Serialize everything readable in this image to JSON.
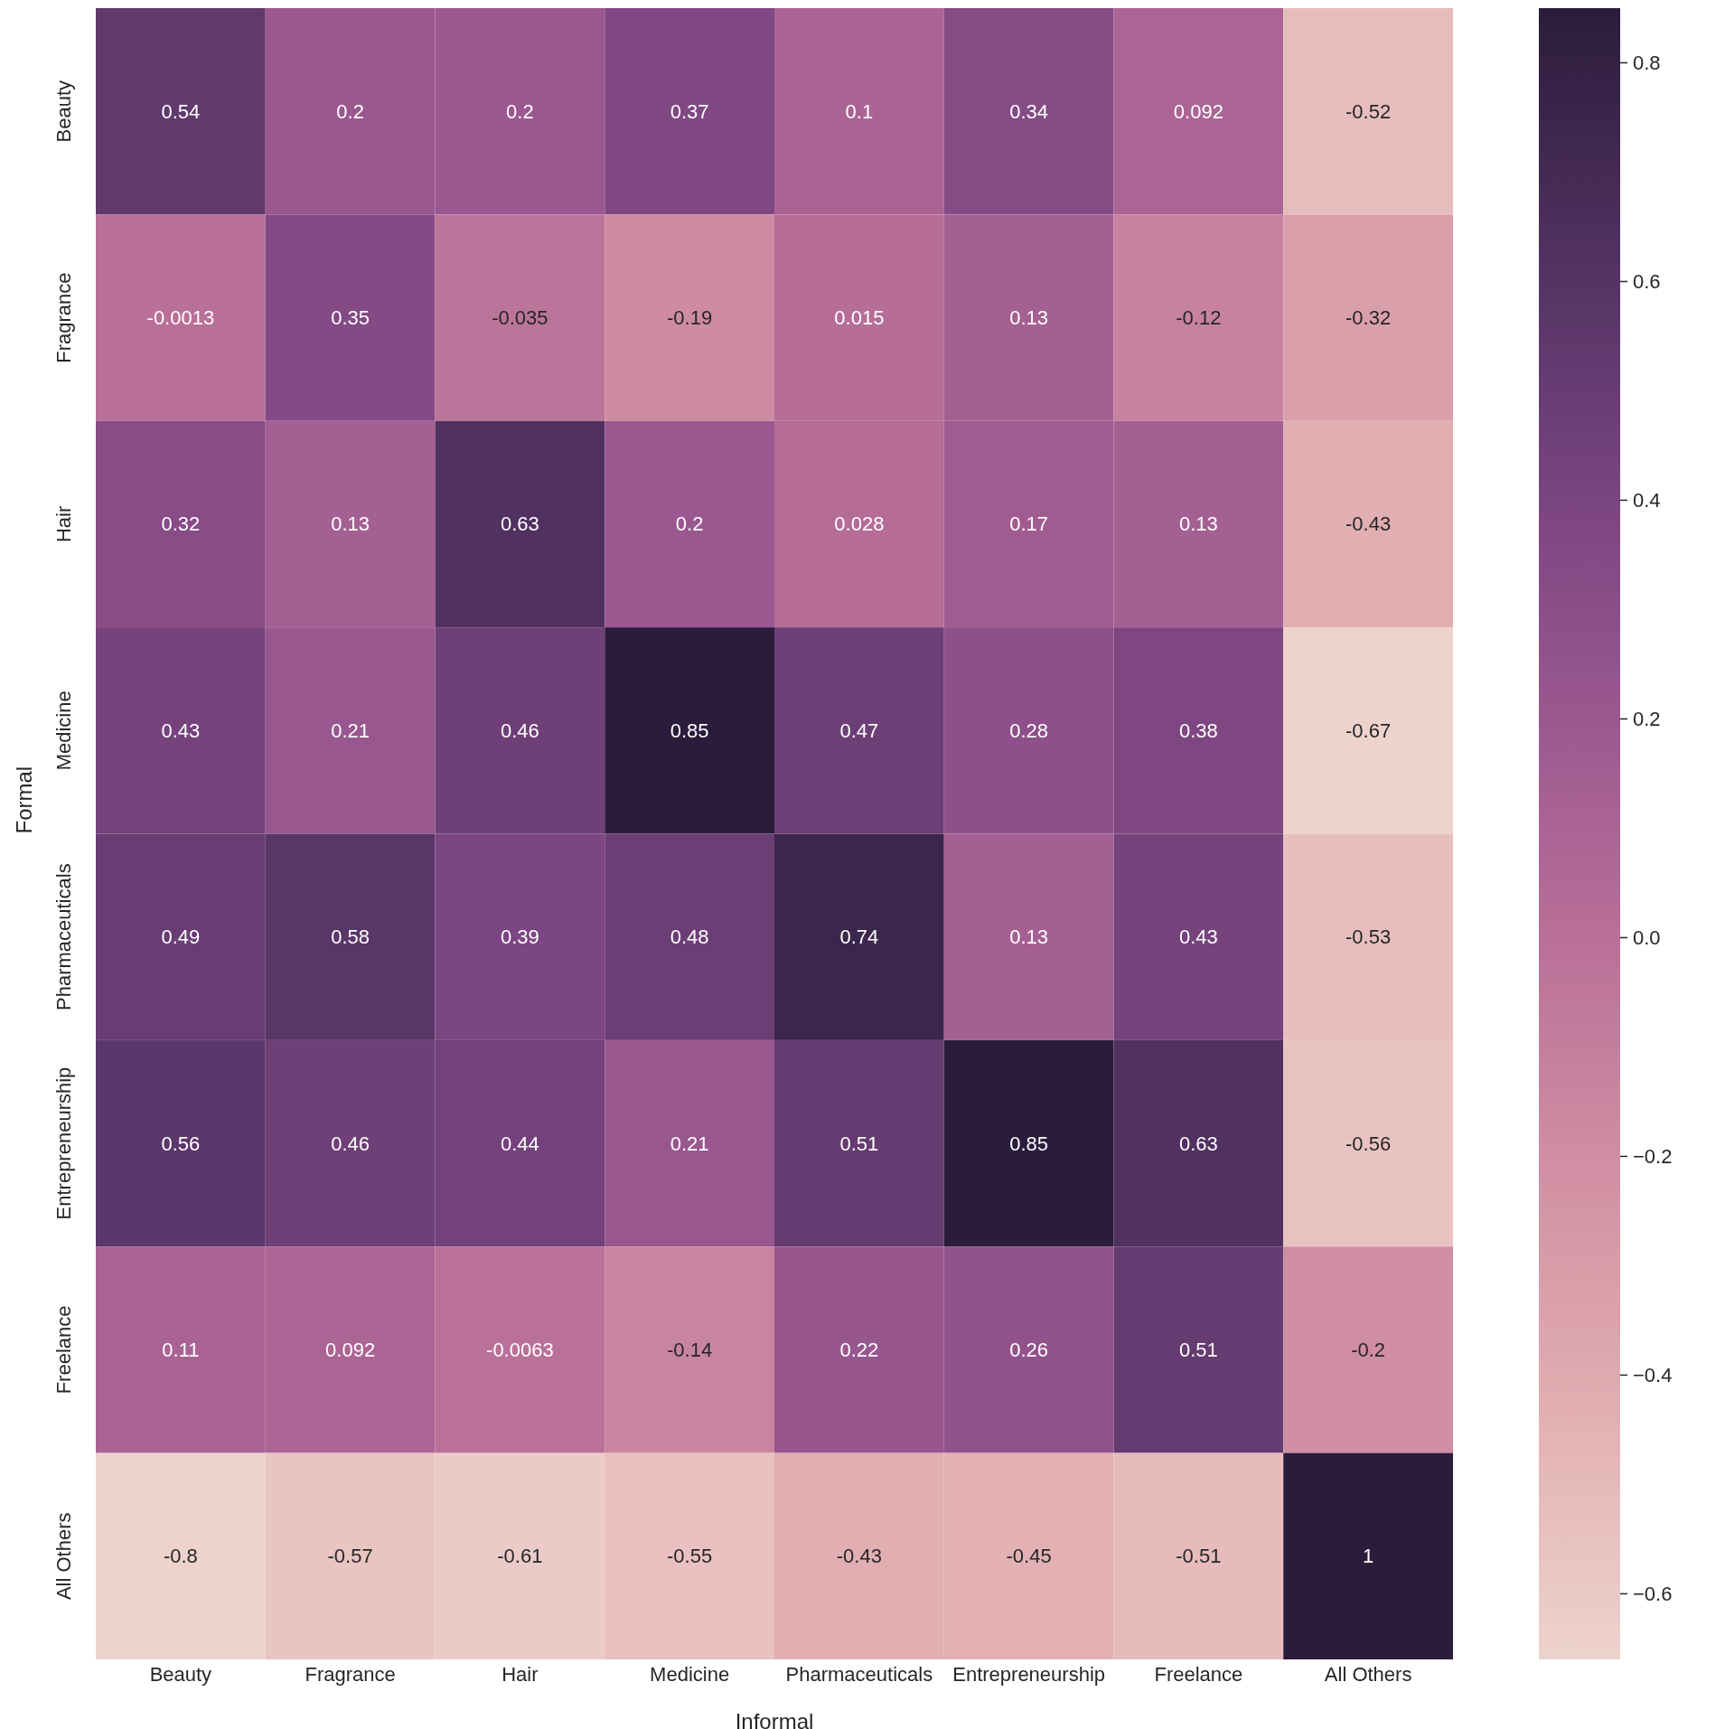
{
  "chart_data": {
    "type": "heatmap",
    "xlabel": "Informal",
    "ylabel": "Formal",
    "categories": [
      "Beauty",
      "Fragrance",
      "Hair",
      "Medicine",
      "Pharmaceuticals",
      "Entrepreneurship",
      "Freelance",
      "All Others"
    ],
    "y_categories": [
      "Beauty",
      "Fragrance",
      "Hair",
      "Medicine",
      "Pharmaceuticals",
      "Entrepreneurship",
      "Freelance",
      "All Others"
    ],
    "cells": [
      [
        0.54,
        0.2,
        0.2,
        0.37,
        0.1,
        0.34,
        0.092,
        -0.52
      ],
      [
        -0.0013,
        0.35,
        -0.035,
        -0.19,
        0.015,
        0.13,
        -0.12,
        -0.32
      ],
      [
        0.32,
        0.13,
        0.63,
        0.2,
        0.028,
        0.17,
        0.13,
        -0.43
      ],
      [
        0.43,
        0.21,
        0.46,
        0.85,
        0.47,
        0.28,
        0.38,
        -0.67
      ],
      [
        0.49,
        0.58,
        0.39,
        0.48,
        0.74,
        0.13,
        0.43,
        -0.53
      ],
      [
        0.56,
        0.46,
        0.44,
        0.21,
        0.51,
        0.85,
        0.63,
        -0.56
      ],
      [
        0.11,
        0.092,
        -0.0063,
        -0.14,
        0.22,
        0.26,
        0.51,
        -0.2
      ],
      [
        -0.8,
        -0.57,
        -0.61,
        -0.55,
        -0.43,
        -0.45,
        -0.51,
        1
      ]
    ],
    "data_labels": true,
    "clim": [
      -0.66,
      0.85
    ],
    "cticks": [
      {
        "value": -0.6,
        "label": "−0.6"
      },
      {
        "value": -0.4,
        "label": "−0.4"
      },
      {
        "value": -0.2,
        "label": "−0.2"
      },
      {
        "value": 0,
        "label": "0.0"
      },
      0.2,
      0.4,
      0.6,
      0.8
    ]
  }
}
